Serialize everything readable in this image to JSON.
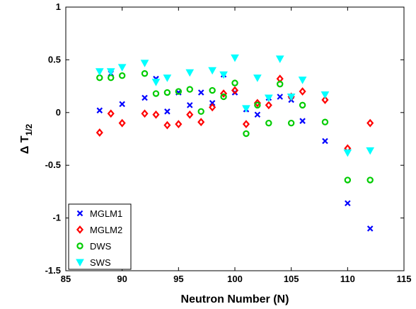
{
  "chart_data": {
    "type": "scatter",
    "xlabel": "Neutron Number (N)",
    "ylabel": "Δ T",
    "ylabel_sub": "1/2",
    "xlim": [
      85,
      115
    ],
    "ylim": [
      -1.5,
      1
    ],
    "xticks": [
      85,
      90,
      95,
      100,
      105,
      110,
      115
    ],
    "yticks": [
      -1.5,
      -1,
      -0.5,
      0,
      0.5,
      1
    ],
    "xtick_labels": [
      "85",
      "90",
      "95",
      "100",
      "105",
      "110",
      "115"
    ],
    "ytick_labels": [
      "-1.5",
      "-1",
      "-0.5",
      "0",
      "0.5",
      "1"
    ],
    "grid": false,
    "legend_position": "bottom-left",
    "series": [
      {
        "name": "MGLM1",
        "marker": "x",
        "color": "#0000ff",
        "x": [
          88,
          89,
          90,
          92,
          93,
          94,
          95,
          96,
          97,
          98,
          99,
          100,
          101,
          102,
          103,
          104,
          105,
          106,
          108,
          110,
          112
        ],
        "y": [
          0.02,
          0.37,
          0.08,
          0.14,
          0.32,
          0.01,
          0.19,
          0.07,
          0.19,
          0.09,
          0.36,
          0.19,
          0.03,
          -0.02,
          0.14,
          0.15,
          0.12,
          -0.08,
          -0.27,
          -0.86,
          -1.1
        ]
      },
      {
        "name": "MGLM2",
        "marker": "diamond",
        "color": "#ff0000",
        "x": [
          88,
          89,
          90,
          92,
          93,
          94,
          95,
          96,
          97,
          98,
          99,
          100,
          101,
          102,
          103,
          104,
          105,
          106,
          108,
          110,
          112
        ],
        "y": [
          -0.19,
          -0.01,
          -0.1,
          -0.01,
          -0.02,
          -0.12,
          -0.11,
          -0.02,
          -0.09,
          0.05,
          0.18,
          0.21,
          -0.11,
          0.09,
          0.07,
          0.32,
          0.15,
          0.2,
          0.12,
          -0.34,
          -0.1
        ]
      },
      {
        "name": "DWS",
        "marker": "circle",
        "color": "#00cc00",
        "x": [
          88,
          89,
          90,
          92,
          93,
          94,
          95,
          96,
          97,
          98,
          99,
          100,
          101,
          102,
          103,
          104,
          105,
          106,
          108,
          110,
          112
        ],
        "y": [
          0.33,
          0.33,
          0.35,
          0.37,
          0.18,
          0.19,
          0.2,
          0.22,
          0.01,
          0.21,
          0.15,
          0.28,
          -0.2,
          0.07,
          -0.1,
          0.27,
          -0.1,
          0.07,
          -0.09,
          -0.64,
          -0.64
        ]
      },
      {
        "name": "SWS",
        "marker": "triangle-down",
        "color": "#00ffff",
        "x": [
          88,
          89,
          90,
          92,
          93,
          94,
          96,
          98,
          99,
          100,
          101,
          102,
          103,
          104,
          105,
          106,
          108,
          110,
          112
        ],
        "y": [
          0.39,
          0.39,
          0.43,
          0.47,
          0.29,
          0.33,
          0.38,
          0.4,
          0.36,
          0.52,
          0.04,
          0.33,
          0.14,
          0.51,
          0.15,
          0.31,
          0.17,
          -0.38,
          -0.36
        ]
      }
    ]
  }
}
